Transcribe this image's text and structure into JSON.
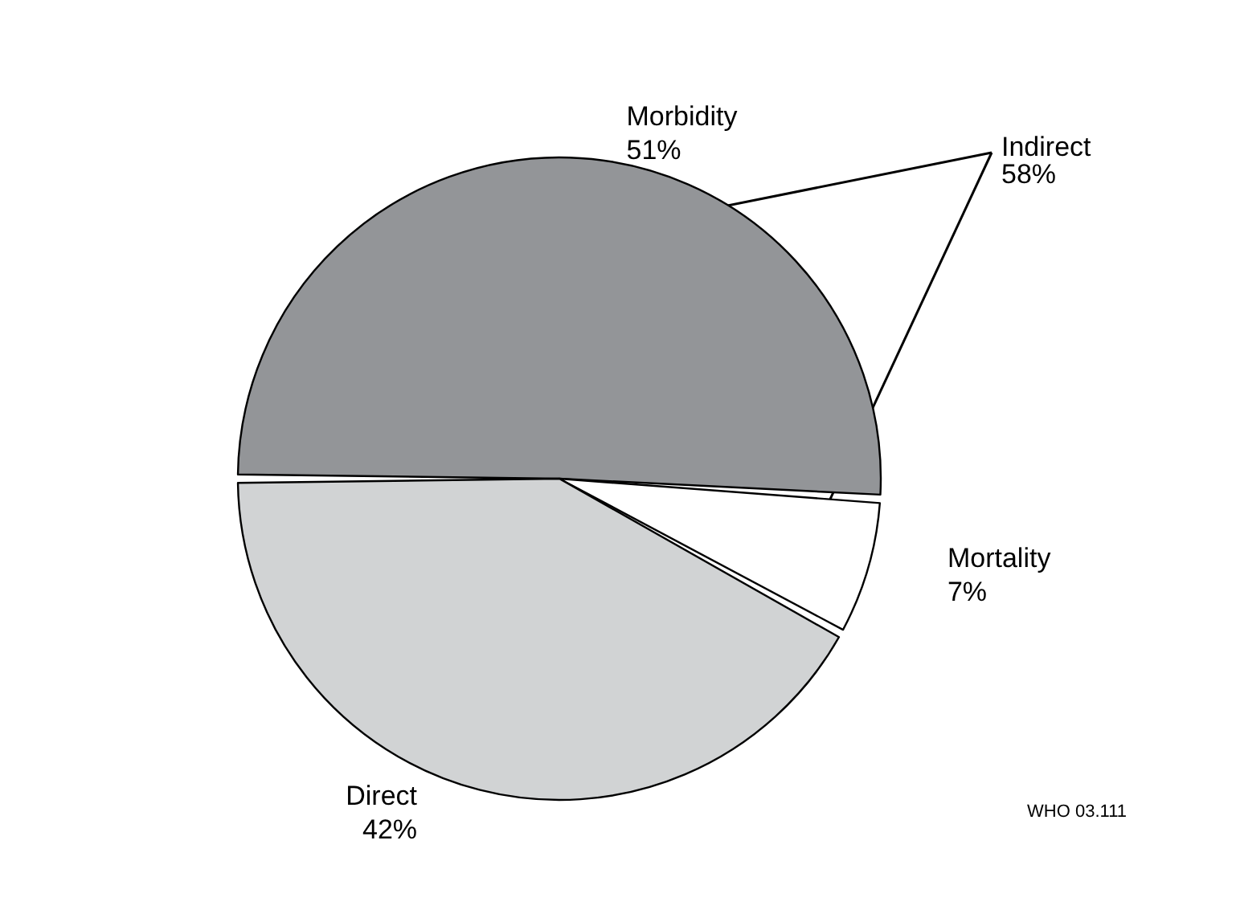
{
  "chart_data": {
    "type": "pie",
    "categories": [
      "Morbidity",
      "Mortality",
      "Direct"
    ],
    "values": [
      51,
      7,
      42
    ],
    "value_labels": [
      "51%",
      "7%",
      "42%"
    ],
    "colors": [
      "#939598",
      "#ffffff",
      "#d1d3d4"
    ],
    "annotations": [
      "Indirect\n58%",
      "WHO 03.111"
    ],
    "legend": false
  }
}
